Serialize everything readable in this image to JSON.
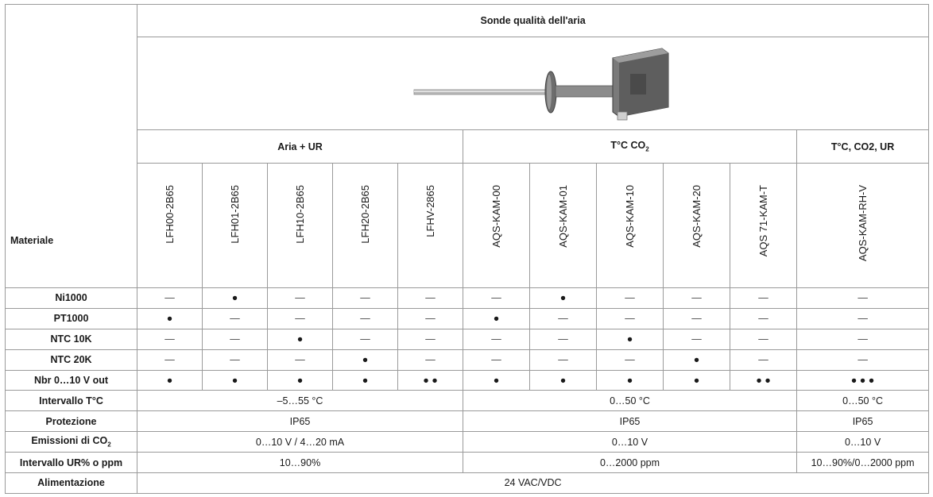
{
  "title": "Sonde qualità dell'aria",
  "image_caption": "",
  "groups": {
    "g1": "Aria + UR",
    "g2_base": "T°C CO",
    "g2_sub": "2",
    "g3": "T°C, CO2, UR"
  },
  "materiale_label": "Materiale",
  "models": [
    "LFH00-2B65",
    "LFH01-2B65",
    "LFH10-2B65",
    "LFH20-2B65",
    "LFHV-2865",
    "AQS-KAM-00",
    "AQS-KAM-01",
    "AQS-KAM-10",
    "AQS-KAM-20",
    "AQS 71-KAM-T",
    "AQS-KAM-RH-V"
  ],
  "rows": [
    {
      "label": "Ni1000",
      "cells": [
        "—",
        "●",
        "—",
        "—",
        "—",
        "—",
        "●",
        "—",
        "—",
        "—",
        "—"
      ]
    },
    {
      "label": "PT1000",
      "cells": [
        "●",
        "—",
        "—",
        "—",
        "—",
        "●",
        "—",
        "—",
        "—",
        "—",
        "—"
      ]
    },
    {
      "label": "NTC 10K",
      "cells": [
        "—",
        "—",
        "●",
        "—",
        "—",
        "—",
        "—",
        "●",
        "—",
        "—",
        "—"
      ]
    },
    {
      "label": "NTC 20K",
      "cells": [
        "—",
        "—",
        "—",
        "●",
        "—",
        "—",
        "—",
        "—",
        "●",
        "—",
        "—"
      ]
    },
    {
      "label": "Nbr 0…10 V out",
      "cells": [
        "●",
        "●",
        "●",
        "●",
        "● ●",
        "●",
        "●",
        "●",
        "●",
        "● ●",
        "● ● ●"
      ]
    }
  ],
  "spans": {
    "intervallo_t": {
      "label": "Intervallo T°C",
      "g1": "–5…55 °C",
      "g2": "0…50 °C",
      "g3": "0…50 °C"
    },
    "protezione": {
      "label": "Protezione",
      "g1": "IP65",
      "g2": "IP65",
      "g3": "IP65"
    },
    "emissioni": {
      "label_base": "Emissioni di CO",
      "label_sub": "2",
      "g1": "0…10 V / 4…20 mA",
      "g2": "0…10 V",
      "g3": "0…10 V"
    },
    "intervallo_ur": {
      "label": "Intervallo UR% o ppm",
      "g1": "10…90%",
      "g2": "0…2000 ppm",
      "g3": "10…90%/0…2000 ppm"
    },
    "alimentazione": {
      "label": "Alimentazione",
      "all": "24 VAC/VDC"
    }
  }
}
